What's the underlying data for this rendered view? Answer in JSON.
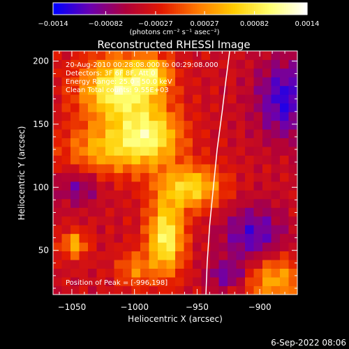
{
  "chart_data": {
    "type": "heatmap",
    "title": "Reconstructed RHESSI Image",
    "xlabel": "Heliocentric X (arcsec)",
    "ylabel": "Heliocentric Y (arcsec)",
    "xlim": [
      -1065,
      -870
    ],
    "ylim": [
      15,
      208
    ],
    "x_ticks": [
      -1050,
      -1000,
      -950,
      -900
    ],
    "x_tick_labels": [
      "−1050",
      "−1000",
      "−950",
      "−900"
    ],
    "y_ticks": [
      50,
      100,
      150,
      200
    ],
    "y_tick_labels": [
      "50",
      "100",
      "150",
      "200"
    ],
    "colorbar": {
      "range": [
        -0.0014,
        0.0014
      ],
      "ticks": [
        -0.0014,
        -0.00082,
        -0.00027,
        0.00027,
        0.00082,
        0.0014
      ],
      "tick_labels": [
        "−0.0014",
        "−0.00082",
        "−0.00027",
        "0.00027",
        "0.00082",
        "0.0014"
      ],
      "unit_label": "(photons cm⁻² s⁻¹ asec⁻²)",
      "colors": [
        "#0000ff",
        "#6a00b0",
        "#b0003a",
        "#e31a00",
        "#ff7a00",
        "#ffcc00",
        "#ffff70",
        "#ffffff"
      ]
    },
    "info_lines": [
      "20-Aug-2010 00:28:08.000 to 00:29:08.000",
      "Detectors: 3F 6F 8F, Att 0",
      "Energy Range: 25.0 - 50.0 keV",
      "Clean    Total counts: 9.55E+03"
    ],
    "peak_text": "Position of Peak = [-996,198]",
    "limb_curve": [
      [
        -943,
        15
      ],
      [
        -942,
        40
      ],
      [
        -940,
        70
      ],
      [
        -937,
        100
      ],
      [
        -934,
        130
      ],
      [
        -930,
        160
      ],
      [
        -927,
        185
      ],
      [
        -924,
        208
      ]
    ],
    "image_grid": {
      "x_range": [
        -1065,
        -870
      ],
      "y_range": [
        15,
        208
      ],
      "nx": 28,
      "ny": 28,
      "hotspots": [
        {
          "x": -1012,
          "y": 178,
          "sx": 22,
          "sy": 18,
          "amp": 0.00145
        },
        {
          "x": -988,
          "y": 140,
          "sx": 18,
          "sy": 16,
          "amp": 0.00125
        },
        {
          "x": -975,
          "y": 60,
          "sx": 10,
          "sy": 20,
          "amp": 0.0014
        },
        {
          "x": -955,
          "y": 100,
          "sx": 18,
          "sy": 12,
          "amp": 0.0011
        },
        {
          "x": -1025,
          "y": 130,
          "sx": 22,
          "sy": 14,
          "amp": 0.0008
        },
        {
          "x": -1048,
          "y": 55,
          "sx": 7,
          "sy": 7,
          "amp": 0.0009
        },
        {
          "x": -985,
          "y": 190,
          "sx": 10,
          "sy": 10,
          "amp": 0.0008
        },
        {
          "x": -890,
          "y": 28,
          "sx": 18,
          "sy": 14,
          "amp": 0.0009
        },
        {
          "x": -1000,
          "y": 35,
          "sx": 10,
          "sy": 10,
          "amp": 0.0006
        }
      ],
      "background": -0.0004,
      "cold_spots": [
        {
          "x": -905,
          "y": 60,
          "sx": 18,
          "sy": 18,
          "amp": -0.0007
        },
        {
          "x": -880,
          "y": 170,
          "sx": 16,
          "sy": 22,
          "amp": -0.0008
        },
        {
          "x": -1045,
          "y": 100,
          "sx": 12,
          "sy": 10,
          "amp": -0.0005
        },
        {
          "x": -925,
          "y": 30,
          "sx": 12,
          "sy": 8,
          "amp": -0.0006
        }
      ]
    }
  },
  "footer": {
    "timestamp": "6-Sep-2022 08:06"
  }
}
